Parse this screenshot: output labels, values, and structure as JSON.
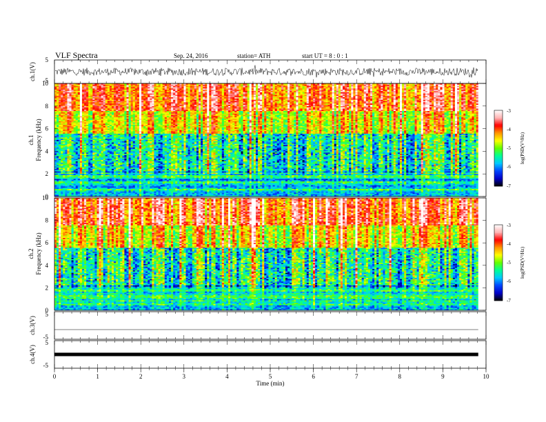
{
  "header": {
    "title": "VLF  Spectra",
    "date": "Sep. 24, 2016",
    "station": "station= ATH",
    "start_ut": "start  UT  =    8  : 0  : 1"
  },
  "chart_data": [
    {
      "type": "line",
      "panel": "ch1-waveform",
      "ylabel": "ch.1(V)",
      "ylim": [
        -5,
        5
      ],
      "yticks": [
        "5",
        "-5"
      ],
      "description_values": {
        "amplitude_range_v": [
          -1.8,
          1.8
        ]
      }
    },
    {
      "type": "heatmap",
      "panel": "ch1-spectrogram",
      "ylabel": "ch.1",
      "ylabel2": "Frequency  (kHz)",
      "ylim": [
        0,
        10
      ],
      "yticks": [
        "0",
        "2",
        "4",
        "6",
        "8",
        "10"
      ],
      "colorbar": {
        "label": "log(PSD(V²/Hz)",
        "range": [
          -7,
          -3
        ],
        "ticks": [
          "-3",
          "-4",
          "-5",
          "-6",
          "-7"
        ]
      }
    },
    {
      "type": "heatmap",
      "panel": "ch2-spectrogram",
      "ylabel": "ch.2",
      "ylabel2": "Frequency  (kHz)",
      "ylim": [
        0,
        10
      ],
      "yticks": [
        "0",
        "2",
        "4",
        "6",
        "8",
        "10"
      ],
      "colorbar": {
        "label": "log(PSD(V²/Hz)",
        "range": [
          -7,
          -3
        ],
        "ticks": [
          "-3",
          "-4",
          "-5",
          "-6",
          "-7"
        ]
      }
    },
    {
      "type": "line",
      "panel": "ch3-waveform",
      "ylabel": "ch.3(V)",
      "ylim": [
        -5,
        5
      ],
      "yticks": [
        "5",
        "-5"
      ],
      "description_values": {
        "level_v": -1.5
      }
    },
    {
      "type": "line",
      "panel": "ch4-waveform",
      "ylabel": "ch.4(V)",
      "ylim": [
        -5,
        5
      ],
      "yticks": [
        "5",
        "-5"
      ],
      "description_values": {
        "level_v": 0
      }
    }
  ],
  "x_axis": {
    "label": "Time  (min)",
    "xlim": [
      0,
      10
    ],
    "ticks": [
      "0",
      "1",
      "2",
      "3",
      "4",
      "5",
      "6",
      "7",
      "8",
      "9",
      "10"
    ]
  },
  "colors": {
    "scale": [
      "#000000",
      "#0000c8",
      "#0046ff",
      "#00c8ff",
      "#00ff96",
      "#64ff00",
      "#ffff00",
      "#ff9600",
      "#ff0000",
      "#ffb4b4",
      "#ffffff"
    ],
    "lines": "#000000"
  }
}
